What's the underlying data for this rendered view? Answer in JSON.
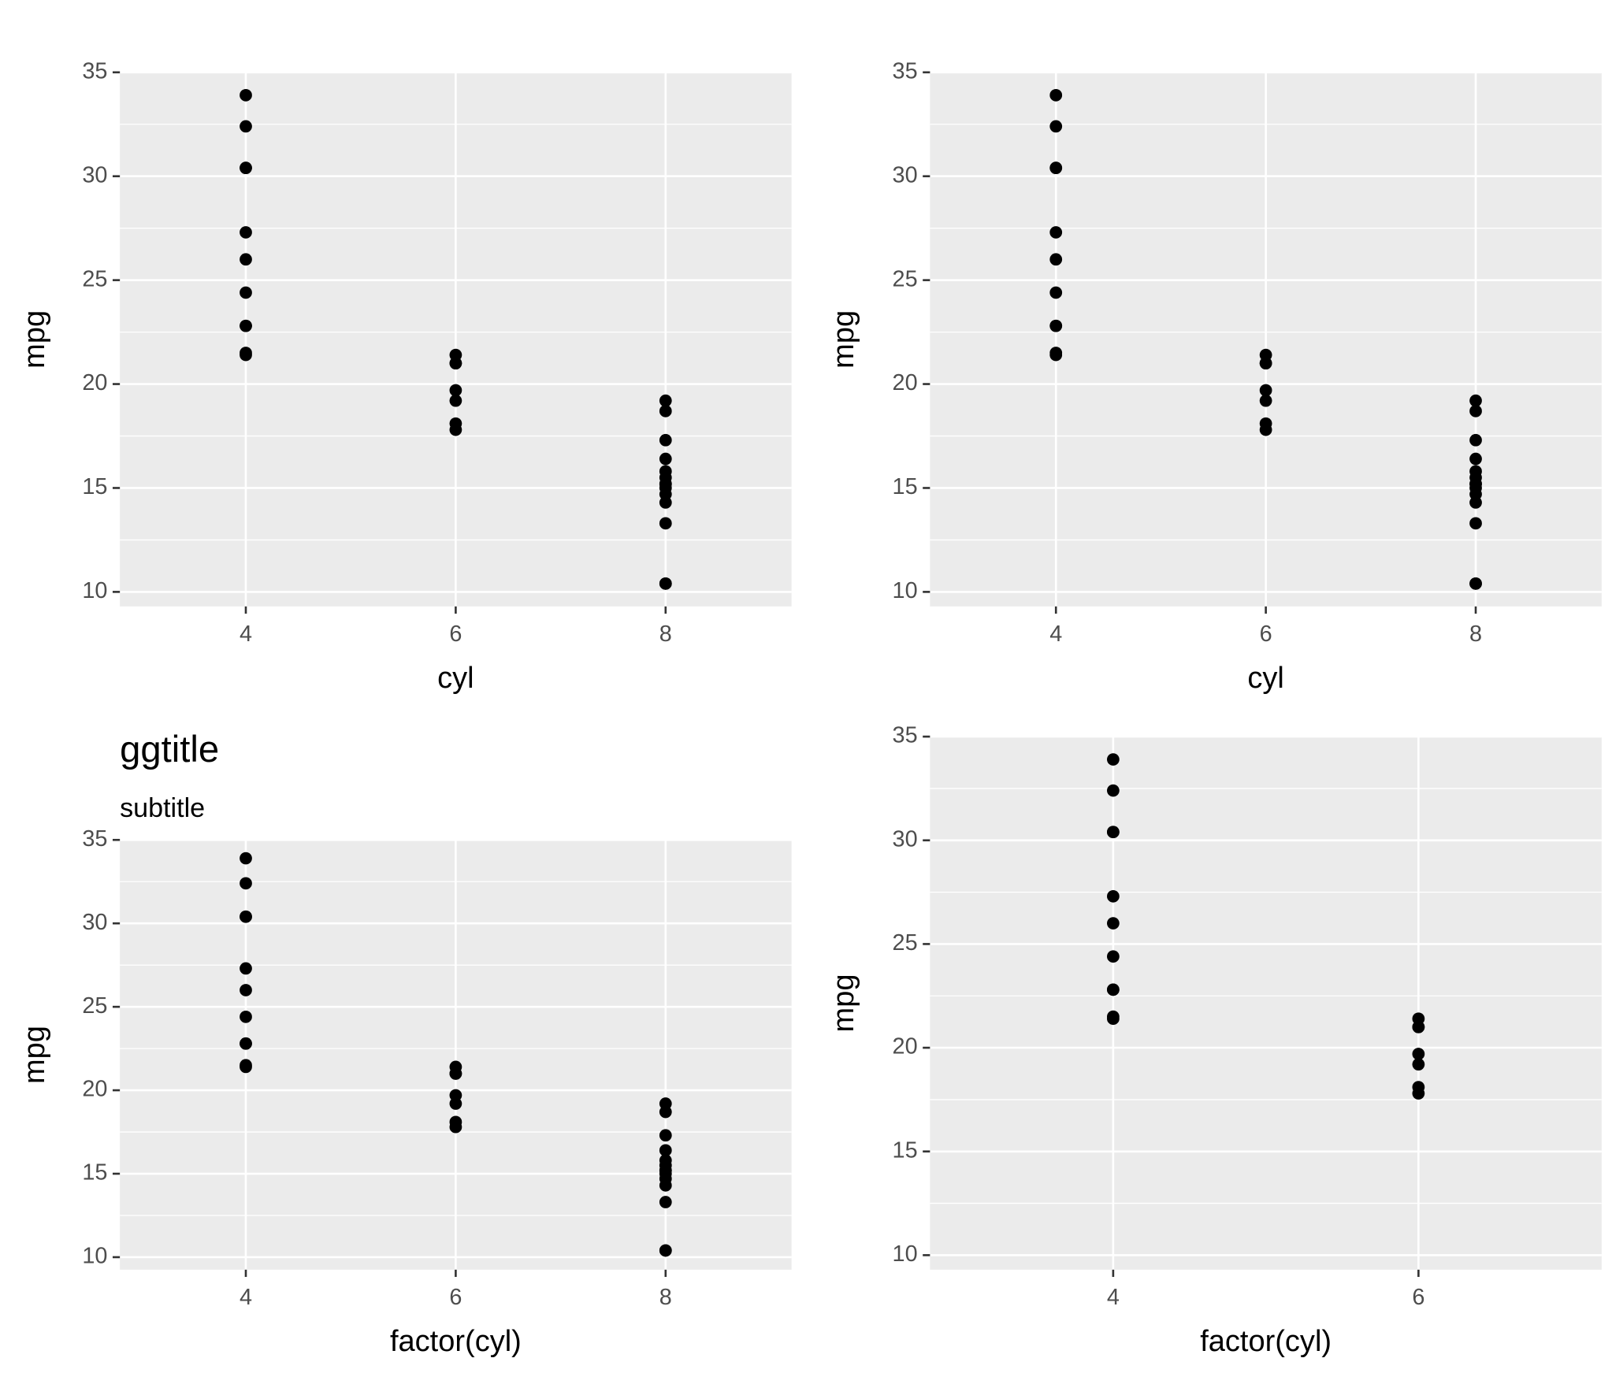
{
  "chart_data": [
    {
      "type": "scatter",
      "x_label": "cyl",
      "y_label": "mpg",
      "color": "#000000",
      "grid": true,
      "xlim": [
        2.8,
        9.2
      ],
      "xticks": [
        4,
        6,
        8
      ],
      "ylim": [
        9.3,
        35
      ],
      "yticks": [
        10,
        15,
        20,
        25,
        30,
        35
      ],
      "x": [
        6,
        6,
        4,
        6,
        8,
        6,
        8,
        4,
        4,
        6,
        6,
        8,
        8,
        8,
        8,
        8,
        8,
        4,
        4,
        4,
        4,
        8,
        8,
        8,
        8,
        4,
        4,
        4,
        8,
        6,
        8,
        4
      ],
      "values": [
        21,
        21,
        22.8,
        21.4,
        18.7,
        18.1,
        14.3,
        24.4,
        22.8,
        19.2,
        17.8,
        16.4,
        17.3,
        15.2,
        10.4,
        10.4,
        14.7,
        32.4,
        30.4,
        33.9,
        21.5,
        15.5,
        15.2,
        13.3,
        19.2,
        27.3,
        26,
        30.4,
        15.8,
        19.7,
        15,
        21.4
      ]
    },
    {
      "type": "scatter",
      "x_label": "cyl",
      "y_label": "mpg",
      "color": "#000000",
      "grid": true,
      "xlim": [
        2.8,
        9.2
      ],
      "xticks": [
        4,
        6,
        8
      ],
      "ylim": [
        9.3,
        35
      ],
      "yticks": [
        10,
        15,
        20,
        25,
        30,
        35
      ],
      "x": [
        6,
        6,
        4,
        6,
        8,
        6,
        8,
        4,
        4,
        6,
        6,
        8,
        8,
        8,
        8,
        8,
        8,
        4,
        4,
        4,
        4,
        8,
        8,
        8,
        8,
        4,
        4,
        4,
        8,
        6,
        8,
        4
      ],
      "values": [
        21,
        21,
        22.8,
        21.4,
        18.7,
        18.1,
        14.3,
        24.4,
        22.8,
        19.2,
        17.8,
        16.4,
        17.3,
        15.2,
        10.4,
        10.4,
        14.7,
        32.4,
        30.4,
        33.9,
        21.5,
        15.5,
        15.2,
        13.3,
        19.2,
        27.3,
        26,
        30.4,
        15.8,
        19.7,
        15,
        21.4
      ]
    },
    {
      "type": "scatter",
      "title": "ggtitle",
      "subtitle": "subtitle",
      "x_label": "factor(cyl)",
      "y_label": "mpg",
      "color": "#000000",
      "grid": true,
      "categories": [
        "4",
        "6",
        "8"
      ],
      "ylim": [
        9.25,
        35
      ],
      "yticks": [
        10,
        15,
        20,
        25,
        30,
        35
      ],
      "x": [
        "6",
        "6",
        "4",
        "6",
        "8",
        "6",
        "8",
        "4",
        "4",
        "6",
        "6",
        "8",
        "8",
        "8",
        "8",
        "8",
        "8",
        "4",
        "4",
        "4",
        "4",
        "8",
        "8",
        "8",
        "8",
        "4",
        "4",
        "4",
        "8",
        "6",
        "8",
        "4"
      ],
      "values": [
        21,
        21,
        22.8,
        21.4,
        18.7,
        18.1,
        14.3,
        24.4,
        22.8,
        19.2,
        17.8,
        16.4,
        17.3,
        15.2,
        10.4,
        10.4,
        14.7,
        32.4,
        30.4,
        33.9,
        21.5,
        15.5,
        15.2,
        13.3,
        19.2,
        27.3,
        26,
        30.4,
        15.8,
        19.7,
        15,
        21.4
      ]
    },
    {
      "type": "scatter",
      "x_label": "factor(cyl)",
      "y_label": "mpg",
      "color": "#000000",
      "grid": true,
      "categories": [
        "4",
        "6"
      ],
      "ylim": [
        9.3,
        35
      ],
      "yticks": [
        10,
        15,
        20,
        25,
        30,
        35
      ],
      "x": [
        "6",
        "6",
        "4",
        "6",
        "6",
        "4",
        "4",
        "6",
        "6",
        "4",
        "4",
        "4",
        "4",
        "4",
        "4",
        "4",
        "6",
        "4"
      ],
      "values": [
        21,
        21,
        22.8,
        21.4,
        18.1,
        24.4,
        22.8,
        19.2,
        17.8,
        32.4,
        30.4,
        33.9,
        21.5,
        27.3,
        26,
        30.4,
        19.7,
        21.4
      ]
    }
  ]
}
